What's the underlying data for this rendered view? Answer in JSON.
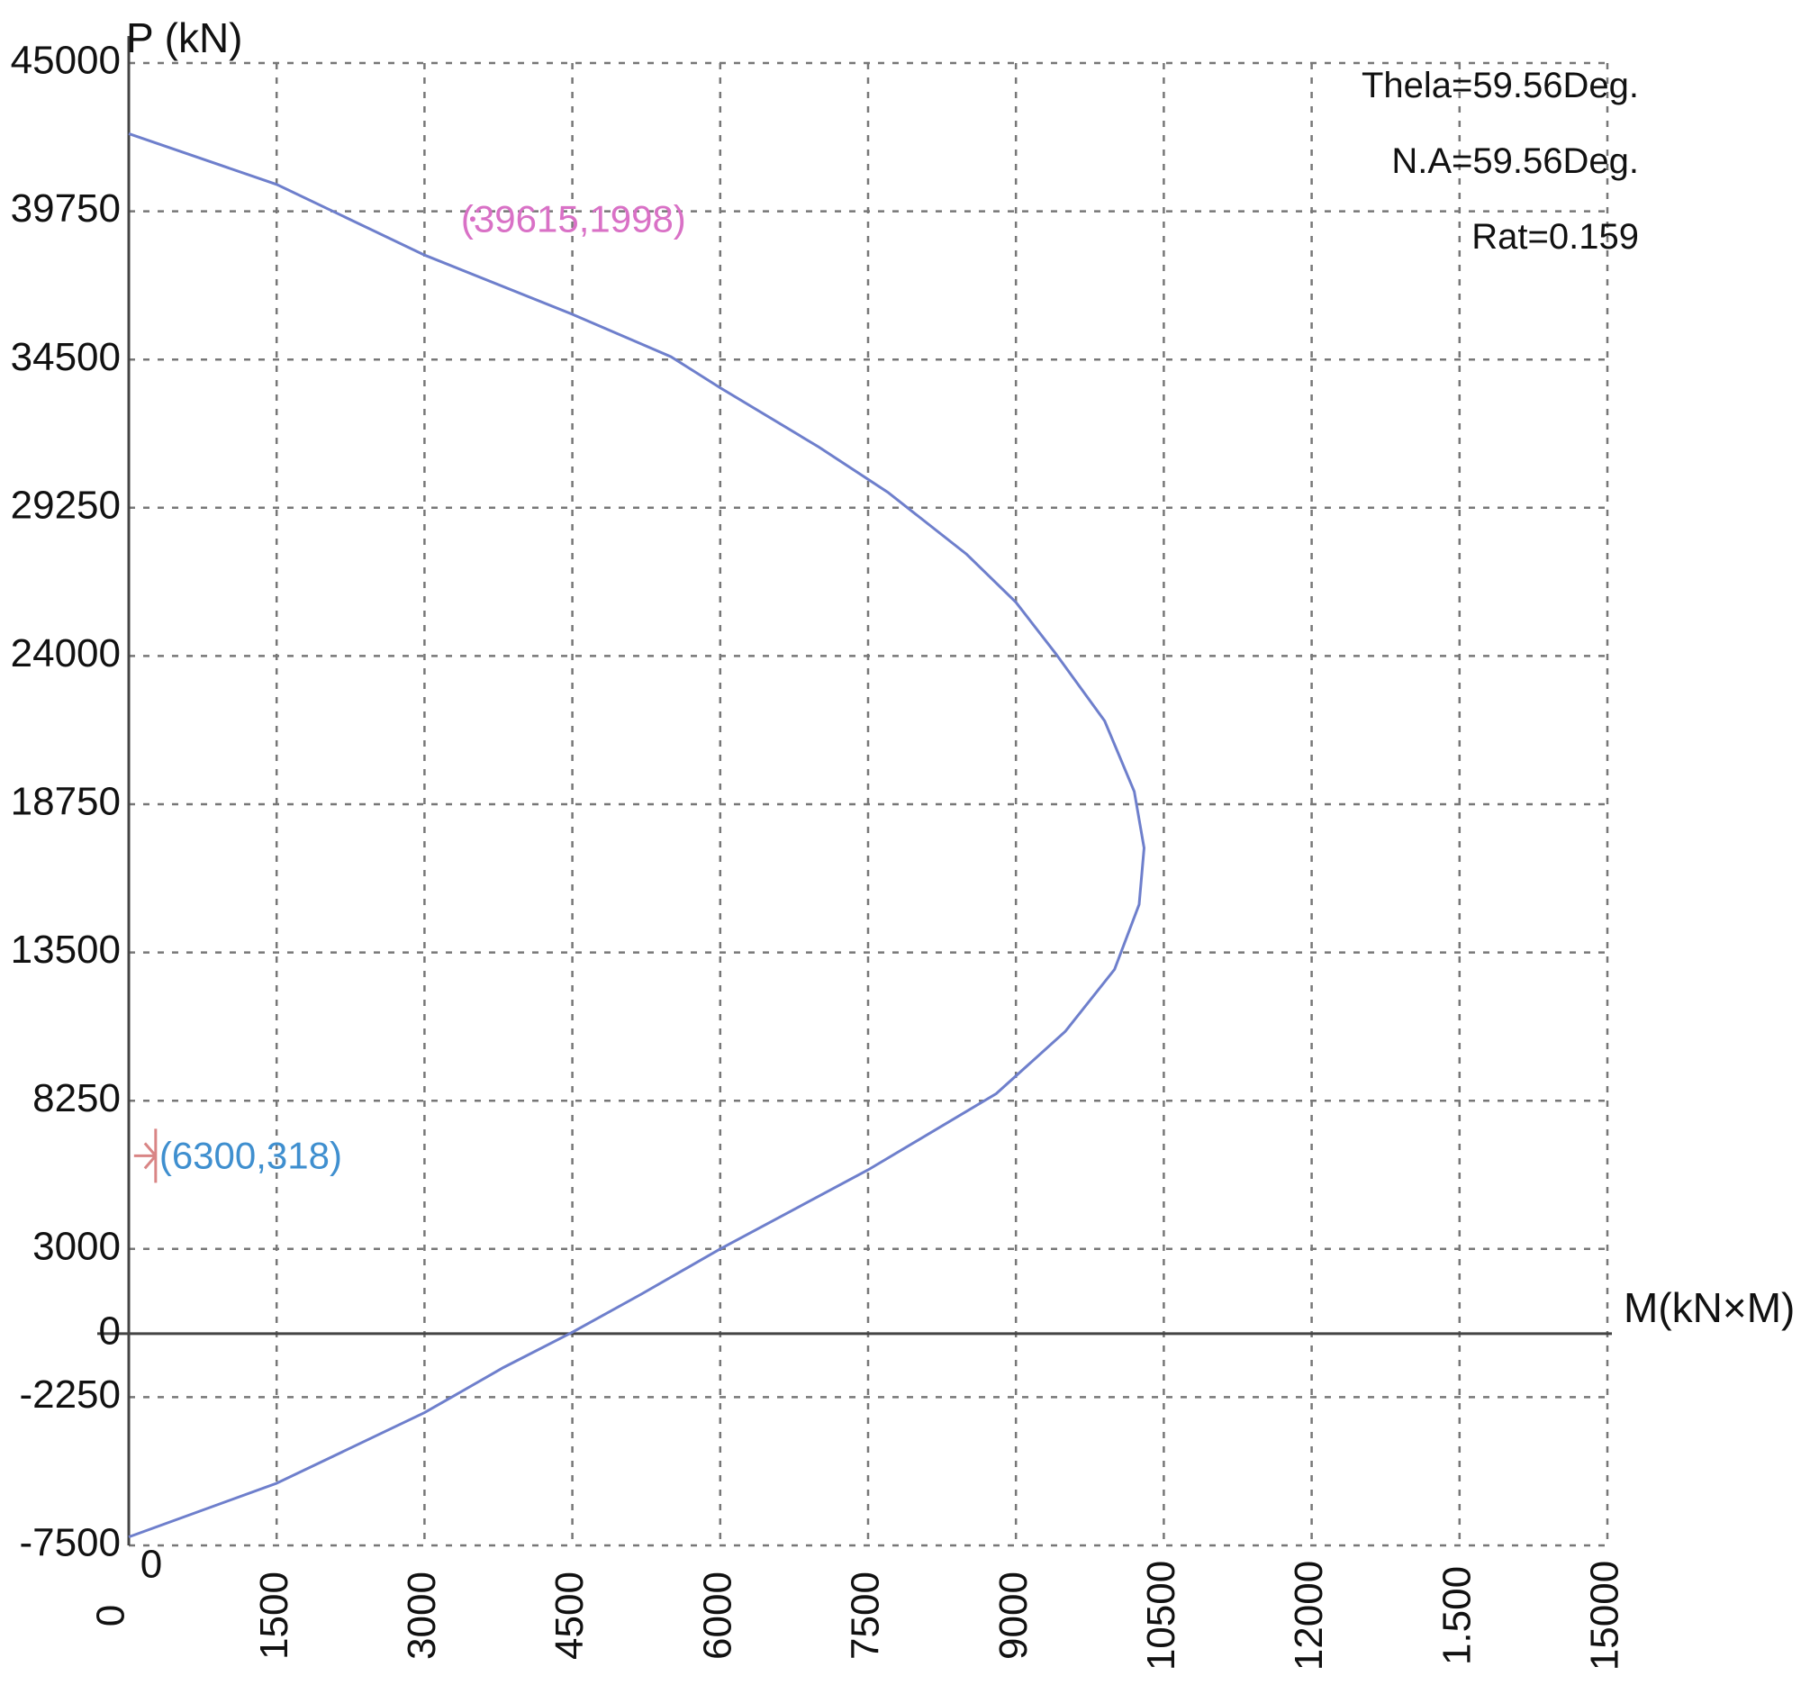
{
  "chart_data": {
    "type": "line",
    "title": "",
    "xlabel": "M(kN×M)",
    "ylabel": "P (kN)",
    "xlim": [
      0,
      15000
    ],
    "ylim": [
      -7500,
      45000
    ],
    "x_ticks": [
      "0",
      "1500",
      "3000",
      "4500",
      "6000",
      "7500",
      "9000",
      "10500",
      "12000",
      "1.500",
      "15000"
    ],
    "y_ticks": [
      "45000",
      "39750",
      "34500",
      "29250",
      "24000",
      "18750",
      "13500",
      "8250",
      "3000",
      "0",
      "-2250",
      "-7500"
    ],
    "origin_label": "0",
    "grid": true,
    "series": [
      {
        "color": "#6e7fcc",
        "points": [
          [
            0,
            42500
          ],
          [
            1500,
            40700
          ],
          [
            3000,
            38200
          ],
          [
            4500,
            36100
          ],
          [
            5500,
            34600
          ],
          [
            6000,
            33500
          ],
          [
            7000,
            31400
          ],
          [
            7700,
            29800
          ],
          [
            8500,
            27600
          ],
          [
            9000,
            25900
          ],
          [
            9400,
            24100
          ],
          [
            9900,
            21700
          ],
          [
            10200,
            19200
          ],
          [
            10300,
            17200
          ],
          [
            10250,
            15200
          ],
          [
            10000,
            12900
          ],
          [
            9500,
            10700
          ],
          [
            8800,
            8500
          ],
          [
            7500,
            5800
          ],
          [
            6000,
            3000
          ],
          [
            5200,
            1400
          ],
          [
            4500,
            50
          ],
          [
            3800,
            -1200
          ],
          [
            3000,
            -2800
          ],
          [
            1500,
            -5300
          ],
          [
            0,
            -7200
          ]
        ]
      }
    ],
    "points": [
      {
        "label": "(39615,1998)",
        "x": 2000,
        "y": 39600,
        "color": "#d971c6"
      },
      {
        "label": "(6300,318)",
        "x": 300,
        "y": 6300,
        "color": "#3f8fcf"
      }
    ],
    "annotations": [
      "Thela=59.56Deg.",
      "N.A=59.56Deg.",
      "Rat=0.159"
    ]
  }
}
